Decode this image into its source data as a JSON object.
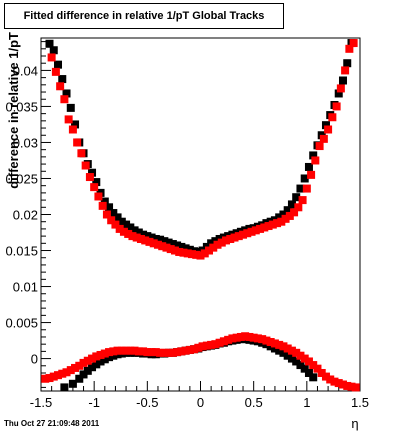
{
  "chart_data": {
    "type": "scatter",
    "title": "Fitted difference in relative 1/pT  Global Tracks",
    "xlabel": "η",
    "ylabel": "difference in relative 1/pT",
    "xlim": [
      -1.5,
      1.5
    ],
    "ylim": [
      -0.0045,
      0.0445
    ],
    "xticks": [
      "-1.5",
      "-1",
      "-0.5",
      "0",
      "0.5",
      "1",
      "1.5"
    ],
    "yticks": [
      "0",
      "0.005",
      "0.01",
      "0.015",
      "0.02",
      "0.025",
      "0.03",
      "0.035",
      "0.04"
    ],
    "grid": false,
    "legend": "none",
    "series": [
      {
        "color": "#000000",
        "role": "upper",
        "x": [
          -1.42,
          -1.38,
          -1.34,
          -1.3,
          -1.26,
          -1.22,
          -1.18,
          -1.14,
          -1.1,
          -1.06,
          -1.02,
          -0.98,
          -0.94,
          -0.9,
          -0.86,
          -0.82,
          -0.78,
          -0.74,
          -0.7,
          -0.66,
          -0.62,
          -0.58,
          -0.54,
          -0.5,
          -0.46,
          -0.42,
          -0.38,
          -0.34,
          -0.3,
          -0.26,
          -0.22,
          -0.18,
          -0.14,
          -0.1,
          -0.06,
          -0.02,
          0.02,
          0.06,
          0.1,
          0.14,
          0.18,
          0.22,
          0.26,
          0.3,
          0.34,
          0.38,
          0.42,
          0.46,
          0.5,
          0.54,
          0.58,
          0.62,
          0.66,
          0.7,
          0.74,
          0.78,
          0.82,
          0.86,
          0.9,
          0.94,
          0.98,
          1.02,
          1.06,
          1.1,
          1.14,
          1.18,
          1.22,
          1.26,
          1.3,
          1.34,
          1.38,
          1.42
        ],
        "y": [
          0.0437,
          0.0428,
          0.0408,
          0.0388,
          0.0368,
          0.0348,
          0.0325,
          0.03,
          0.0285,
          0.027,
          0.0258,
          0.0245,
          0.023,
          0.0218,
          0.021,
          0.0202,
          0.0196,
          0.019,
          0.0186,
          0.0182,
          0.0178,
          0.0175,
          0.0172,
          0.017,
          0.0168,
          0.0166,
          0.0165,
          0.0163,
          0.0161,
          0.0159,
          0.0157,
          0.0155,
          0.0153,
          0.0151,
          0.0149,
          0.0148,
          0.015,
          0.0155,
          0.016,
          0.0163,
          0.0166,
          0.0168,
          0.017,
          0.0172,
          0.0174,
          0.0176,
          0.0178,
          0.018,
          0.0181,
          0.0183,
          0.0185,
          0.0188,
          0.019,
          0.0192,
          0.0196,
          0.02,
          0.0206,
          0.0214,
          0.0224,
          0.0236,
          0.025,
          0.0266,
          0.0282,
          0.0296,
          0.031,
          0.0324,
          0.0338,
          0.0352,
          0.0368,
          0.0386,
          0.041,
          0.0438
        ]
      },
      {
        "color": "#ff0000",
        "role": "upper",
        "x": [
          -1.4,
          -1.36,
          -1.32,
          -1.28,
          -1.24,
          -1.2,
          -1.16,
          -1.12,
          -1.08,
          -1.04,
          -1.0,
          -0.96,
          -0.92,
          -0.88,
          -0.84,
          -0.8,
          -0.76,
          -0.72,
          -0.68,
          -0.64,
          -0.6,
          -0.56,
          -0.52,
          -0.48,
          -0.44,
          -0.4,
          -0.36,
          -0.32,
          -0.28,
          -0.24,
          -0.2,
          -0.16,
          -0.12,
          -0.08,
          -0.04,
          0.0,
          0.04,
          0.08,
          0.12,
          0.16,
          0.2,
          0.24,
          0.28,
          0.32,
          0.36,
          0.4,
          0.44,
          0.48,
          0.52,
          0.56,
          0.6,
          0.64,
          0.68,
          0.72,
          0.76,
          0.8,
          0.84,
          0.88,
          0.92,
          0.96,
          1.0,
          1.04,
          1.08,
          1.12,
          1.16,
          1.2,
          1.24,
          1.28,
          1.32,
          1.36,
          1.4,
          1.44
        ],
        "y": [
          0.0418,
          0.0398,
          0.0378,
          0.036,
          0.0332,
          0.0318,
          0.03,
          0.0285,
          0.0268,
          0.0252,
          0.0238,
          0.0225,
          0.0212,
          0.02,
          0.0192,
          0.0186,
          0.018,
          0.0176,
          0.0173,
          0.017,
          0.0168,
          0.0166,
          0.0164,
          0.0162,
          0.016,
          0.0158,
          0.0156,
          0.0154,
          0.0152,
          0.015,
          0.0148,
          0.0147,
          0.0146,
          0.0145,
          0.0144,
          0.0143,
          0.0146,
          0.015,
          0.0154,
          0.0158,
          0.0161,
          0.0164,
          0.0166,
          0.0168,
          0.017,
          0.0172,
          0.0174,
          0.0176,
          0.0178,
          0.018,
          0.0182,
          0.0184,
          0.0186,
          0.0188,
          0.019,
          0.0194,
          0.0198,
          0.0203,
          0.021,
          0.022,
          0.0236,
          0.0255,
          0.0275,
          0.0295,
          0.0305,
          0.0318,
          0.0335,
          0.035,
          0.0375,
          0.04,
          0.043,
          0.0438
        ]
      },
      {
        "color": "#000000",
        "role": "lower",
        "x": [
          -1.28,
          -1.2,
          -1.14,
          -1.1,
          -1.06,
          -1.02,
          -0.98,
          -0.94,
          -0.9,
          -0.86,
          -0.82,
          -0.78,
          -0.74,
          -0.7,
          -0.66,
          -0.62,
          -0.58,
          -0.54,
          -0.5,
          -0.46,
          -0.42,
          -0.38,
          -0.34,
          -0.3,
          -0.26,
          -0.22,
          -0.18,
          -0.14,
          -0.1,
          -0.06,
          -0.02,
          0.02,
          0.06,
          0.1,
          0.14,
          0.18,
          0.22,
          0.26,
          0.3,
          0.34,
          0.38,
          0.42,
          0.46,
          0.5,
          0.54,
          0.58,
          0.62,
          0.66,
          0.7,
          0.74,
          0.78,
          0.82,
          0.86,
          0.9,
          0.94,
          0.98,
          1.02,
          1.06
        ],
        "y": [
          -0.004,
          -0.0035,
          -0.0028,
          -0.0022,
          -0.0017,
          -0.0012,
          -0.0008,
          -0.0004,
          -0.0001,
          0.0002,
          0.0004,
          0.0006,
          0.0007,
          0.0008,
          0.0008,
          0.0008,
          0.0008,
          0.0007,
          0.0007,
          0.0006,
          0.0006,
          0.0007,
          0.0007,
          0.0008,
          0.0008,
          0.0009,
          0.001,
          0.0011,
          0.0012,
          0.0013,
          0.0014,
          0.0016,
          0.0017,
          0.0018,
          0.0019,
          0.0021,
          0.0022,
          0.0024,
          0.0025,
          0.0026,
          0.0027,
          0.0027,
          0.0026,
          0.0025,
          0.0024,
          0.0022,
          0.002,
          0.0017,
          0.0014,
          0.0011,
          0.0008,
          0.0004,
          0.0,
          -0.0004,
          -0.0009,
          -0.0014,
          -0.002,
          -0.0026
        ]
      },
      {
        "color": "#ff0000",
        "role": "lower",
        "x": [
          -1.46,
          -1.42,
          -1.38,
          -1.34,
          -1.3,
          -1.26,
          -1.22,
          -1.18,
          -1.14,
          -1.1,
          -1.06,
          -1.02,
          -0.98,
          -0.94,
          -0.9,
          -0.86,
          -0.82,
          -0.78,
          -0.74,
          -0.7,
          -0.66,
          -0.62,
          -0.58,
          -0.54,
          -0.5,
          -0.46,
          -0.42,
          -0.38,
          -0.34,
          -0.3,
          -0.26,
          -0.22,
          -0.18,
          -0.14,
          -0.1,
          -0.06,
          -0.02,
          0.02,
          0.06,
          0.1,
          0.14,
          0.18,
          0.22,
          0.26,
          0.3,
          0.34,
          0.38,
          0.42,
          0.46,
          0.5,
          0.54,
          0.58,
          0.62,
          0.66,
          0.7,
          0.74,
          0.78,
          0.82,
          0.86,
          0.9,
          0.94,
          0.98,
          1.02,
          1.06,
          1.1,
          1.14,
          1.18,
          1.22,
          1.26,
          1.3,
          1.34,
          1.38,
          1.42,
          1.46
        ],
        "y": [
          -0.0028,
          -0.0027,
          -0.0025,
          -0.0023,
          -0.0021,
          -0.0019,
          -0.0016,
          -0.0013,
          -0.001,
          -0.0006,
          -0.0003,
          0.0,
          0.0003,
          0.0005,
          0.0007,
          0.0009,
          0.001,
          0.0011,
          0.0011,
          0.0011,
          0.0011,
          0.0011,
          0.001,
          0.001,
          0.0009,
          0.0009,
          0.0009,
          0.0008,
          0.0008,
          0.0008,
          0.0008,
          0.0009,
          0.001,
          0.0011,
          0.0012,
          0.0013,
          0.0015,
          0.0017,
          0.0018,
          0.0019,
          0.002,
          0.0022,
          0.0024,
          0.0026,
          0.0028,
          0.0029,
          0.003,
          0.0031,
          0.003,
          0.0029,
          0.0028,
          0.0027,
          0.0025,
          0.0023,
          0.0021,
          0.0019,
          0.0017,
          0.0014,
          0.0011,
          0.0008,
          0.0004,
          0.0,
          -0.0004,
          -0.0009,
          -0.0014,
          -0.002,
          -0.0025,
          -0.0029,
          -0.0032,
          -0.0034,
          -0.0036,
          -0.0038,
          -0.0039,
          -0.004
        ]
      }
    ]
  },
  "footer": {
    "timestamp": "Thu Oct 27 21:09:48 2011"
  }
}
